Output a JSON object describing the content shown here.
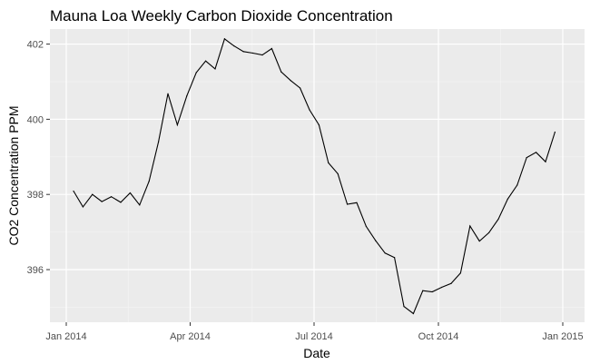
{
  "chart_data": {
    "type": "line",
    "title": "Mauna Loa Weekly Carbon Dioxide Concentration",
    "xlabel": "Date",
    "ylabel": "CO2 Concentration PPM",
    "x_ticks": [
      "Jan 2014",
      "Apr 2014",
      "Jul 2014",
      "Oct 2014",
      "Jan 2015"
    ],
    "y_ticks": [
      "396",
      "398",
      "400",
      "402"
    ],
    "ylim": [
      394.6,
      402.4
    ],
    "grid": true,
    "series": [
      {
        "values": [
          398.09,
          397.67,
          398.0,
          397.81,
          397.94,
          397.79,
          398.04,
          397.72,
          398.35,
          399.4,
          400.68,
          399.85,
          400.62,
          401.24,
          401.55,
          401.34,
          402.14,
          401.95,
          401.8,
          401.76,
          401.71,
          401.88,
          401.26,
          401.03,
          400.83,
          400.25,
          399.85,
          398.84,
          398.55,
          397.74,
          397.78,
          397.15,
          396.77,
          396.44,
          396.32,
          395.02,
          394.83,
          395.44,
          395.41,
          395.53,
          395.63,
          395.91,
          397.16,
          396.76,
          396.98,
          397.34,
          397.88,
          398.25,
          398.98,
          399.12,
          398.87,
          399.66
        ]
      }
    ]
  }
}
